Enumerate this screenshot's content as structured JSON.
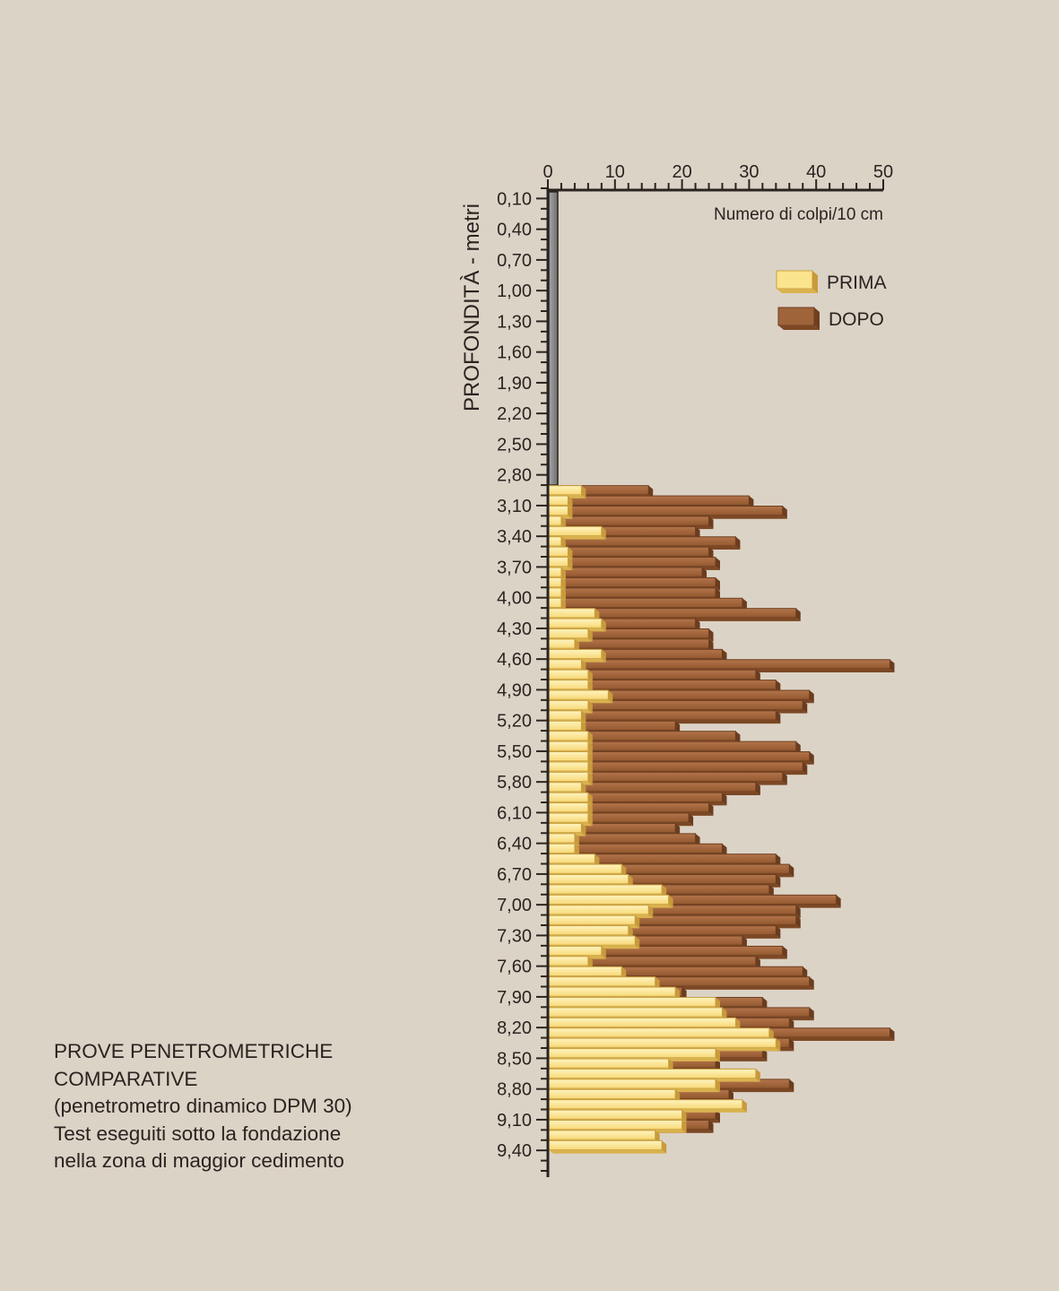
{
  "caption": {
    "line1": "PROVE PENETROMETRICHE",
    "line2": "COMPARATIVE",
    "line3": "(penetrometro dinamico DPM 30)",
    "line4": "Test eseguiti sotto la fondazione",
    "line5": "nella zona di maggior cedimento"
  },
  "colors": {
    "background": "#dcd3c7",
    "prima": "#fbe48e",
    "dopo": "#a0643a",
    "axis": "#2a2420",
    "upper_column": "#8a8a8a"
  },
  "chart_data": {
    "type": "bar",
    "orientation": "horizontal",
    "xlabel": "Numero di colpi/10 cm",
    "ylabel": "PROFONDITÀ - metri",
    "xlim": [
      0,
      50
    ],
    "x_ticks": [
      "0",
      "10",
      "20",
      "30",
      "40",
      "50"
    ],
    "y_ticks": [
      "0,10",
      "0,40",
      "0,70",
      "1,00",
      "1,30",
      "1,60",
      "1,90",
      "2,20",
      "2,50",
      "2,80",
      "3,10",
      "3,40",
      "3,70",
      "4,00",
      "4,30",
      "4,60",
      "4,90",
      "5,20",
      "5,50",
      "5,80",
      "6,10",
      "6,40",
      "6,70",
      "7,00",
      "7,30",
      "7,60",
      "7,90",
      "8,20",
      "8,50",
      "8,80",
      "9,10",
      "9,40"
    ],
    "ylim": [
      0,
      9.6
    ],
    "y_reversed": true,
    "legend_position": "top-right",
    "depth_start": 2.9,
    "depth_step": 0.1,
    "series": [
      {
        "name": "PRIMA",
        "values": [
          5,
          3,
          3,
          2,
          8,
          2,
          3,
          3,
          2,
          2,
          2,
          2,
          7,
          8,
          6,
          4,
          8,
          5,
          6,
          6,
          9,
          6,
          5,
          5,
          6,
          6,
          6,
          6,
          6,
          5,
          6,
          6,
          6,
          5,
          4,
          4,
          7,
          11,
          12,
          17,
          18,
          15,
          13,
          12,
          13,
          8,
          6,
          11,
          16,
          19,
          25,
          26,
          28,
          33,
          34,
          25,
          18,
          31,
          25,
          19,
          29,
          20,
          20,
          16,
          17
        ]
      },
      {
        "name": "DOPO",
        "values": [
          15,
          30,
          35,
          24,
          22,
          28,
          24,
          25,
          23,
          25,
          25,
          29,
          37,
          22,
          24,
          24,
          26,
          51,
          31,
          34,
          39,
          38,
          34,
          19,
          28,
          37,
          39,
          38,
          35,
          31,
          26,
          24,
          21,
          19,
          22,
          26,
          34,
          36,
          34,
          33,
          43,
          37,
          37,
          34,
          29,
          35,
          31,
          38,
          39,
          20,
          32,
          39,
          36,
          51,
          36,
          32,
          25,
          30,
          36,
          27,
          25,
          25,
          24
        ]
      }
    ]
  }
}
